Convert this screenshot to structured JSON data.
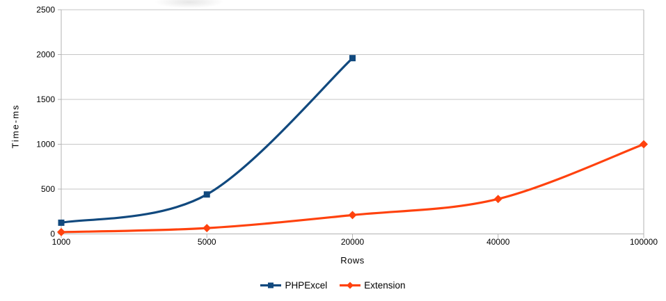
{
  "chart_data": {
    "type": "line",
    "title": "",
    "xlabel": "Rows",
    "ylabel": "Time-ms",
    "x_categories": [
      "1000",
      "5000",
      "20000",
      "40000",
      "100000"
    ],
    "yticks": [
      "0",
      "500",
      "1000",
      "1500",
      "2000",
      "2500"
    ],
    "ylim": [
      0,
      2500
    ],
    "grid": "horizontal-on",
    "legend_position": "bottom-center",
    "series": [
      {
        "name": "PHPExcel",
        "color": "#11497E",
        "marker": "square",
        "values": [
          125,
          440,
          1960,
          null,
          null
        ]
      },
      {
        "name": "Extension",
        "color": "#FF420E",
        "marker": "diamond",
        "values": [
          20,
          65,
          210,
          390,
          1000
        ]
      }
    ],
    "colors": {
      "grid": "#c6c6c6",
      "axis": "#b3b3b3",
      "text": "#000000",
      "background": "#ffffff"
    }
  }
}
